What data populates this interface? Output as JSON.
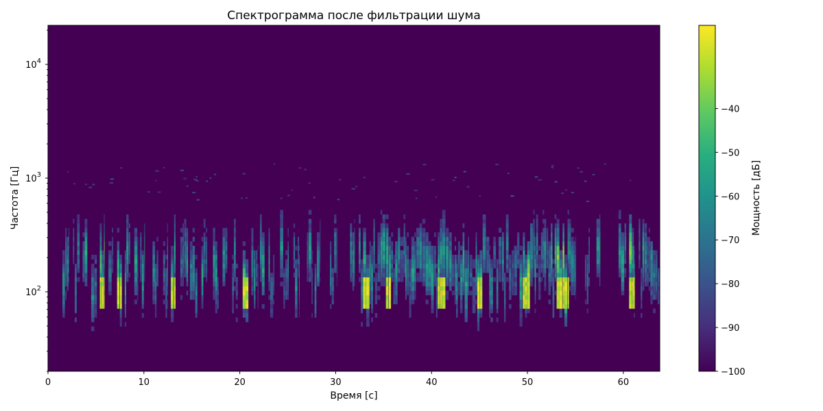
{
  "chart_data": {
    "type": "heatmap",
    "title": "Спектрограмма после фильтрации шума",
    "xlabel": "Время [с]",
    "ylabel": "Частота [Гц]",
    "xlim": [
      0,
      63.8
    ],
    "ylim": [
      20,
      22050
    ],
    "yscale": "log",
    "x_ticks": [
      0,
      10,
      20,
      30,
      40,
      50,
      60
    ],
    "x_tick_labels": [
      "0",
      "10",
      "20",
      "30",
      "40",
      "50",
      "60"
    ],
    "y_ticks": [
      100,
      1000,
      10000
    ],
    "y_tick_labels": [
      "10",
      "10",
      "10"
    ],
    "y_tick_exponents": [
      "2",
      "3",
      "4"
    ],
    "colormap": "viridis",
    "background_color": "#440154",
    "colorbar": {
      "label": "Мощность [дБ]",
      "range": [
        -100,
        -21
      ],
      "ticks": [
        -40,
        -50,
        -60,
        -70,
        -80,
        -90,
        -100
      ],
      "tick_labels": [
        "−40",
        "−50",
        "−60",
        "−70",
        "−80",
        "−90",
        "−100"
      ]
    },
    "grid": false,
    "active_intervals_s": [
      [
        1.5,
        2.2
      ],
      [
        2.6,
        3.3
      ],
      [
        3.6,
        4.1
      ],
      [
        4.5,
        5.1
      ],
      [
        5.4,
        5.9
      ],
      [
        6.3,
        6.8
      ],
      [
        7.2,
        7.7
      ],
      [
        8.0,
        8.6
      ],
      [
        9.0,
        9.4
      ],
      [
        9.6,
        10.1
      ],
      [
        10.9,
        11.5
      ],
      [
        12.0,
        12.5
      ],
      [
        12.8,
        13.3
      ],
      [
        13.8,
        14.6
      ],
      [
        14.8,
        15.6
      ],
      [
        16.0,
        16.6
      ],
      [
        17.2,
        17.8
      ],
      [
        18.2,
        18.7
      ],
      [
        19.2,
        19.8
      ],
      [
        20.3,
        20.9
      ],
      [
        21.2,
        21.9
      ],
      [
        22.1,
        22.6
      ],
      [
        23.0,
        23.6
      ],
      [
        24.2,
        25.1
      ],
      [
        25.6,
        26.2
      ],
      [
        27.0,
        27.6
      ],
      [
        27.8,
        28.4
      ],
      [
        29.4,
        30.1
      ],
      [
        31.5,
        32.0
      ],
      [
        32.4,
        55.0
      ],
      [
        56.0,
        56.5
      ],
      [
        57.2,
        57.6
      ],
      [
        59.5,
        60.3
      ],
      [
        60.6,
        61.2
      ],
      [
        61.6,
        63.8
      ]
    ],
    "strong_bursts_s": [
      5.6,
      7.4,
      13.0,
      20.6,
      33.2,
      35.5,
      41.0,
      45.1,
      49.8,
      53.4,
      54.0,
      61.0
    ],
    "energy_band_hz": [
      40,
      500
    ],
    "scattered_high_freq_hz": [
      600,
      1300
    ]
  }
}
